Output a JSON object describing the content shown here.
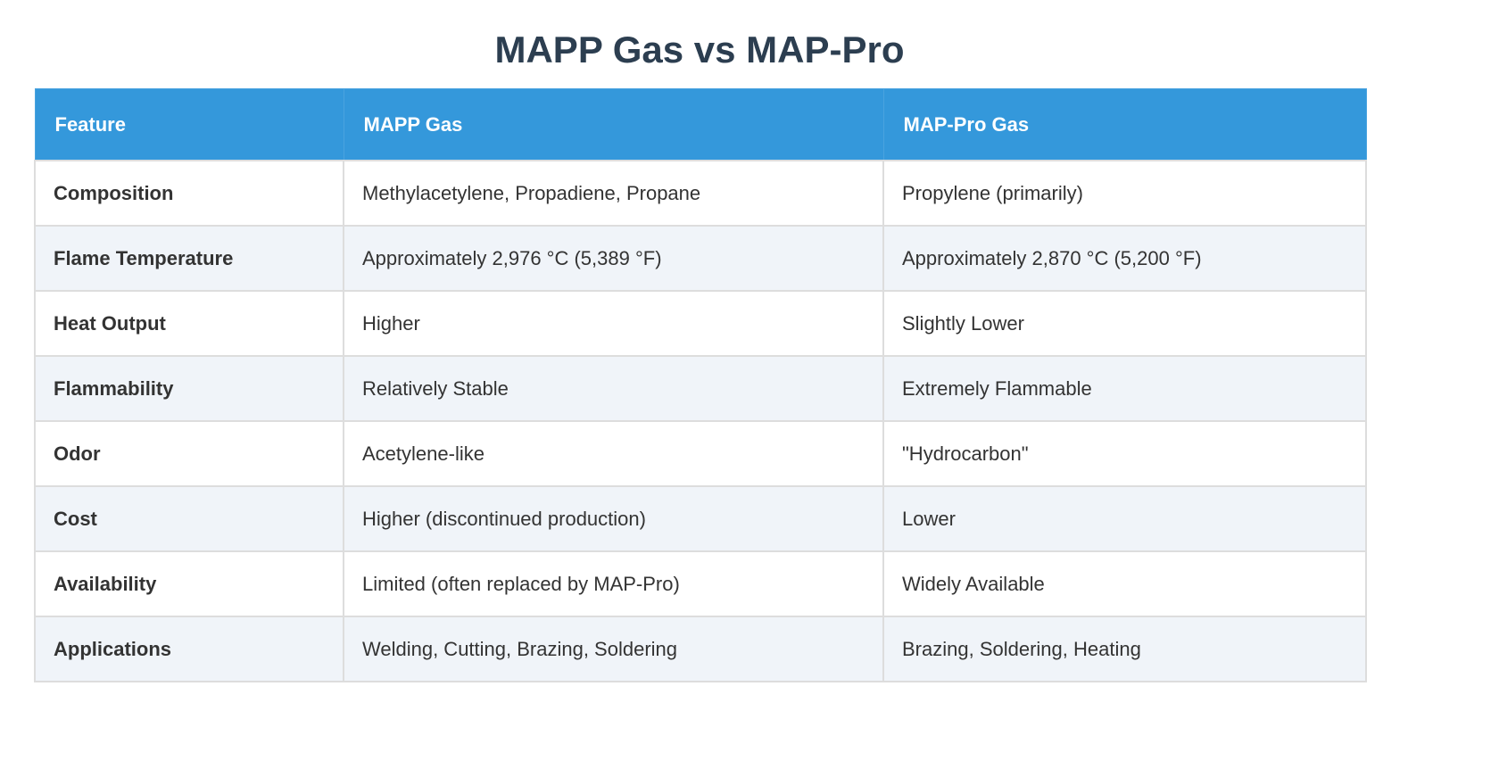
{
  "title": "MAPP Gas vs MAP-Pro",
  "table": {
    "headers": [
      "Feature",
      "MAPP Gas",
      "MAP-Pro Gas"
    ],
    "rows": [
      {
        "feature": "Composition",
        "mapp": "Methylacetylene, Propadiene, Propane",
        "mappro": "Propylene (primarily)"
      },
      {
        "feature": "Flame Temperature",
        "mapp": "Approximately 2,976 °C (5,389 °F)",
        "mappro": "Approximately 2,870 °C (5,200 °F)"
      },
      {
        "feature": "Heat Output",
        "mapp": "Higher",
        "mappro": "Slightly Lower"
      },
      {
        "feature": "Flammability",
        "mapp": "Relatively Stable",
        "mappro": "Extremely Flammable"
      },
      {
        "feature": "Odor",
        "mapp": "Acetylene-like",
        "mappro": "\"Hydrocarbon\""
      },
      {
        "feature": "Cost",
        "mapp": "Higher (discontinued production)",
        "mappro": "Lower"
      },
      {
        "feature": "Availability",
        "mapp": "Limited (often replaced by MAP-Pro)",
        "mappro": "Widely Available"
      },
      {
        "feature": "Applications",
        "mapp": "Welding, Cutting, Brazing, Soldering",
        "mappro": "Brazing, Soldering, Heating"
      }
    ]
  },
  "colors": {
    "title": "#2c3e50",
    "header_bg": "#3498db",
    "header_text": "#ffffff",
    "row_alt_bg": "#f0f4f9",
    "border": "#dddddd"
  }
}
